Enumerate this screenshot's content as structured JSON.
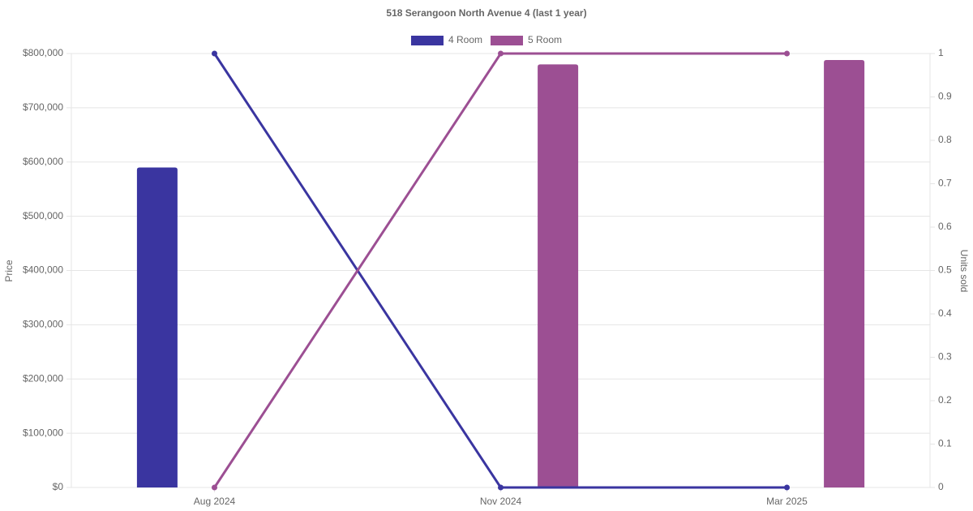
{
  "chart_data": {
    "type": "bar_line",
    "title": "518 Serangoon North Avenue 4 (last 1 year)",
    "ylabel": "Price",
    "y2label": "Units sold",
    "categories": [
      "Aug 2024",
      "Nov 2024",
      "Mar 2025"
    ],
    "series": [
      {
        "name": "4 Room",
        "color": "#3a35a0",
        "values": [
          590000,
          null,
          null
        ],
        "y2_values": [
          1,
          0,
          0
        ]
      },
      {
        "name": "5 Room",
        "color": "#9c4f93",
        "values": [
          null,
          780000,
          788000
        ],
        "y2_values": [
          0,
          1,
          1
        ]
      }
    ],
    "ylim": [
      0,
      800000
    ],
    "yticks": [
      {
        "value": 0,
        "label": "$0"
      },
      {
        "value": 100000,
        "label": "$100,000"
      },
      {
        "value": 200000,
        "label": "$200,000"
      },
      {
        "value": 300000,
        "label": "$300,000"
      },
      {
        "value": 400000,
        "label": "$400,000"
      },
      {
        "value": 500000,
        "label": "$500,000"
      },
      {
        "value": 600000,
        "label": "$600,000"
      },
      {
        "value": 700000,
        "label": "$700,000"
      },
      {
        "value": 800000,
        "label": "$800,000"
      }
    ],
    "y2lim": [
      0,
      1
    ],
    "y2ticks": [
      0,
      0.1,
      0.2,
      0.3,
      0.4,
      0.5,
      0.6,
      0.7,
      0.8,
      0.9,
      1
    ],
    "grid": true,
    "legend": "top"
  }
}
